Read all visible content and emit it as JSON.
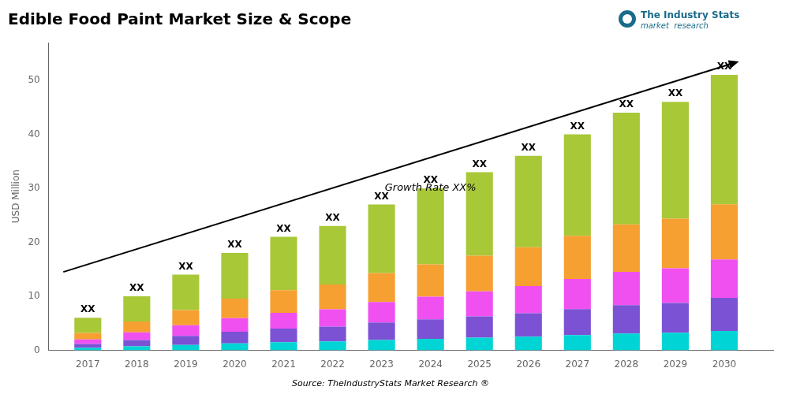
{
  "chart_data": {
    "type": "bar",
    "stacked": true,
    "title": "Edible Food Paint Market Size & Scope",
    "ylabel": "USD Million",
    "source": "Source: TheIndustryStats Market Research ®",
    "x": [
      2017,
      2018,
      2019,
      2020,
      2021,
      2022,
      2023,
      2024,
      2025,
      2026,
      2027,
      2028,
      2029,
      2030
    ],
    "series": [
      {
        "color": "#00D4D4",
        "values": [
          0.42,
          0.7,
          0.98,
          1.26,
          1.47,
          1.61,
          1.89,
          2.1,
          2.31,
          2.52,
          2.8,
          3.08,
          3.22,
          3.57
        ]
      },
      {
        "color": "#7B52D4",
        "values": [
          0.72,
          1.2,
          1.68,
          2.16,
          2.52,
          2.76,
          3.24,
          3.6,
          3.96,
          4.32,
          4.8,
          5.28,
          5.52,
          6.12
        ]
      },
      {
        "color": "#F050F0",
        "values": [
          0.84,
          1.4,
          1.96,
          2.52,
          2.94,
          3.22,
          3.78,
          4.2,
          4.62,
          5.04,
          5.6,
          6.16,
          6.44,
          7.14
        ]
      },
      {
        "color": "#F5A030",
        "values": [
          1.2,
          2,
          2.8,
          3.6,
          4.2,
          4.6,
          5.4,
          6,
          6.6,
          7.2,
          8,
          8.8,
          9.2,
          10.2
        ]
      },
      {
        "color": "#A8C838",
        "values": [
          2.82,
          4.7,
          6.58,
          8.46,
          9.87,
          10.81,
          12.69,
          14.1,
          15.51,
          16.92,
          18.8,
          20.68,
          21.62,
          23.97
        ]
      }
    ],
    "bar_labels": [
      "XX",
      "XX",
      "XX",
      "XX",
      "XX",
      "XX",
      "XX",
      "XX",
      "XX",
      "XX",
      "XX",
      "XX",
      "XX",
      "XX"
    ],
    "arrow": {
      "start": [
        2016.5,
        14.5
      ],
      "end": [
        2030.3,
        53.5
      ]
    },
    "arrow_label": {
      "text": "Growth Rate XX%",
      "x": 2024.0,
      "y": 30.0
    },
    "logo": {
      "texts": [
        "The Industry Stats",
        "market  research"
      ],
      "color": "#1a6b8a"
    },
    "xlim": [
      2016.2,
      2031.0
    ],
    "xticks": [
      2017,
      2018,
      2019,
      2020,
      2021,
      2022,
      2023,
      2024,
      2025,
      2026,
      2027,
      2028,
      2029,
      2030
    ],
    "ylim": [
      0,
      57
    ],
    "yticks": [
      0,
      10,
      20,
      30,
      40,
      50
    ],
    "grid": false,
    "legend": false
  }
}
